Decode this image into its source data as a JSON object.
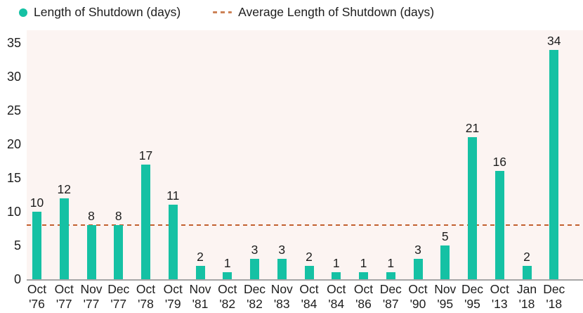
{
  "legend": {
    "bars_label": "Length of Shutdown (days)",
    "average_label": "Average Length of Shutdown (days)"
  },
  "colors": {
    "bar": "#15c1a4",
    "average_line": "#c2602f",
    "legend_dash": "#cc8257",
    "plot_background": "#fcf4f2",
    "axis_line": "#a6a6a6",
    "text": "#1d1d1d"
  },
  "chart_data": {
    "type": "bar",
    "title": "",
    "xlabel": "",
    "ylabel": "",
    "categories": [
      "Oct '76",
      "Oct '77",
      "Nov '77",
      "Dec '77",
      "Oct '78",
      "Oct '79",
      "Nov '81",
      "Oct '82",
      "Dec '82",
      "Nov '83",
      "Oct '84",
      "Oct '84",
      "Oct '86",
      "Dec '87",
      "Oct '90",
      "Nov '95",
      "Dec '95",
      "Oct '13",
      "Jan '18",
      "Dec '18"
    ],
    "values": [
      10,
      12,
      8,
      8,
      17,
      11,
      2,
      1,
      3,
      3,
      2,
      1,
      1,
      1,
      3,
      5,
      21,
      16,
      2,
      34
    ],
    "series_name": "Length of Shutdown (days)",
    "average_line": {
      "label": "Average Length of Shutdown (days)",
      "value": 8
    },
    "y_ticks": [
      0,
      5,
      10,
      15,
      20,
      25,
      30,
      35
    ],
    "ylim": [
      0,
      35
    ],
    "grid": false,
    "data_labels": true,
    "legend_position": "top-left"
  }
}
